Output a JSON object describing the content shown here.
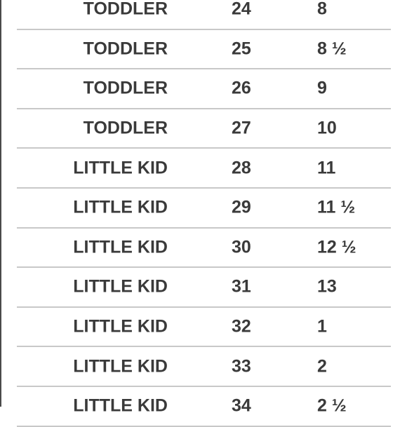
{
  "table": {
    "rows": [
      {
        "category": "TODDLER",
        "eu": "24",
        "us": "8"
      },
      {
        "category": "TODDLER",
        "eu": "25",
        "us": "8 ½"
      },
      {
        "category": "TODDLER",
        "eu": "26",
        "us": "9"
      },
      {
        "category": "TODDLER",
        "eu": "27",
        "us": "10"
      },
      {
        "category": "LITTLE KID",
        "eu": "28",
        "us": "11"
      },
      {
        "category": "LITTLE KID",
        "eu": "29",
        "us": "11 ½"
      },
      {
        "category": "LITTLE KID",
        "eu": "30",
        "us": "12 ½"
      },
      {
        "category": "LITTLE KID",
        "eu": "31",
        "us": "13"
      },
      {
        "category": "LITTLE KID",
        "eu": "32",
        "us": "1"
      },
      {
        "category": "LITTLE KID",
        "eu": "33",
        "us": "2"
      },
      {
        "category": "LITTLE KID",
        "eu": "34",
        "us": "2 ½"
      }
    ]
  }
}
